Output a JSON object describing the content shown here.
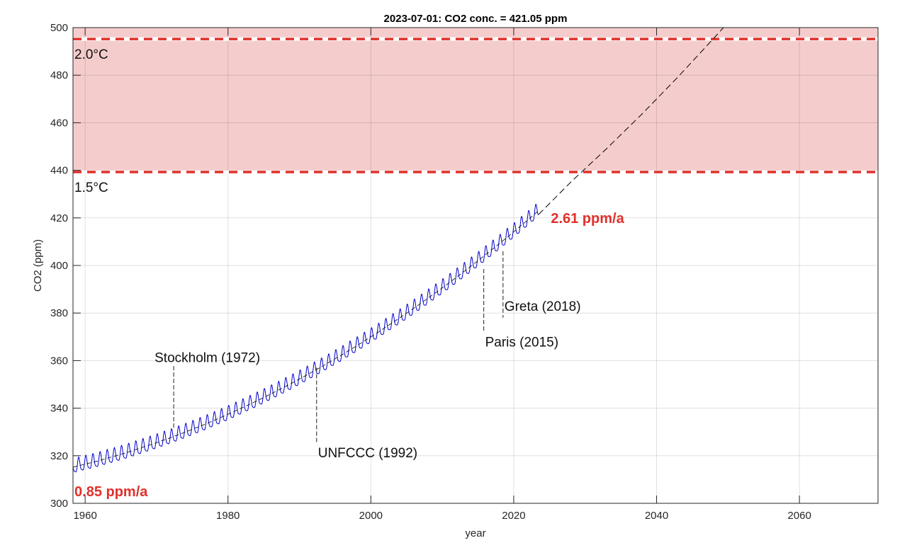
{
  "chart_data": {
    "type": "line",
    "title": "2023-07-01: CO2 conc. = 421.05 ppm",
    "xlabel": "year",
    "ylabel": "CO2 (ppm)",
    "xlim": [
      1958.3,
      2071
    ],
    "ylim": [
      300,
      500
    ],
    "xticks": [
      1960,
      1980,
      2000,
      2020,
      2040,
      2060
    ],
    "yticks": [
      300,
      320,
      340,
      360,
      380,
      400,
      420,
      440,
      460,
      480,
      500
    ],
    "grid": true,
    "colors": {
      "observed": "#0000cc",
      "trend": "#000000",
      "threshold": "#e0302a",
      "band": "#f5cccc",
      "rate_label": "#e0302a"
    },
    "thresholds": [
      {
        "label": "2.0°C",
        "value": 495.2
      },
      {
        "label": "1.5°C",
        "value": 439.3
      }
    ],
    "band": [
      439.3,
      500
    ],
    "observed": {
      "start_year": 1958,
      "end_year": 2023.5,
      "seasonal_amplitude_ppm": 3.2,
      "annual_trend_years": [
        1958,
        1959,
        1960,
        1961,
        1962,
        1963,
        1964,
        1965,
        1966,
        1967,
        1968,
        1969,
        1970,
        1971,
        1972,
        1973,
        1974,
        1975,
        1976,
        1977,
        1978,
        1979,
        1980,
        1981,
        1982,
        1983,
        1984,
        1985,
        1986,
        1987,
        1988,
        1989,
        1990,
        1991,
        1992,
        1993,
        1994,
        1995,
        1996,
        1997,
        1998,
        1999,
        2000,
        2001,
        2002,
        2003,
        2004,
        2005,
        2006,
        2007,
        2008,
        2009,
        2010,
        2011,
        2012,
        2013,
        2014,
        2015,
        2016,
        2017,
        2018,
        2019,
        2020,
        2021,
        2022,
        2023
      ],
      "annual_trend_ppm": [
        315.0,
        315.7,
        316.5,
        317.2,
        318.0,
        318.9,
        319.7,
        320.6,
        321.5,
        322.5,
        323.5,
        324.5,
        325.5,
        326.6,
        327.6,
        328.8,
        329.9,
        331.1,
        332.3,
        333.5,
        334.8,
        336.1,
        337.4,
        338.8,
        340.2,
        341.6,
        343.0,
        344.5,
        346.0,
        347.5,
        349.1,
        350.6,
        352.3,
        353.9,
        355.6,
        357.3,
        359.0,
        360.8,
        362.5,
        364.4,
        366.2,
        368.1,
        370.0,
        371.9,
        373.9,
        375.9,
        377.9,
        379.9,
        382.0,
        384.1,
        386.3,
        388.4,
        390.6,
        392.8,
        395.1,
        397.4,
        399.7,
        402.0,
        404.4,
        406.8,
        409.2,
        411.7,
        414.1,
        416.7,
        419.2,
        421.8
      ]
    },
    "projection": {
      "years": [
        2023.5,
        2028,
        2033,
        2038,
        2043,
        2048,
        2050
      ],
      "ppm": [
        421.5,
        435.1,
        449.1,
        463.8,
        479.3,
        495.5,
        502.1
      ]
    },
    "rates": [
      {
        "label": "0.85 ppm/a",
        "year": 1958.5,
        "ppm": 305
      },
      {
        "label": "2.61 ppm/a",
        "year": 2025.2,
        "ppm": 420
      }
    ],
    "events": [
      {
        "label": "Stockholm (1972)",
        "year": 1972.4,
        "line_from": 331.8,
        "line_to": 358.6,
        "text_ppm": 361.5
      },
      {
        "label": "UNFCCC (1992)",
        "year": 1992.4,
        "line_from": 357.0,
        "line_to": 325.6,
        "text_ppm": 321.5
      },
      {
        "label": "Paris (2015)",
        "year": 2015.8,
        "line_from": 398.5,
        "line_to": 371.7,
        "text_ppm": 368.0
      },
      {
        "label": "Greta (2018)",
        "year": 2018.5,
        "line_from": 406.0,
        "line_to": 378.0,
        "text_ppm": 383.0
      }
    ]
  }
}
